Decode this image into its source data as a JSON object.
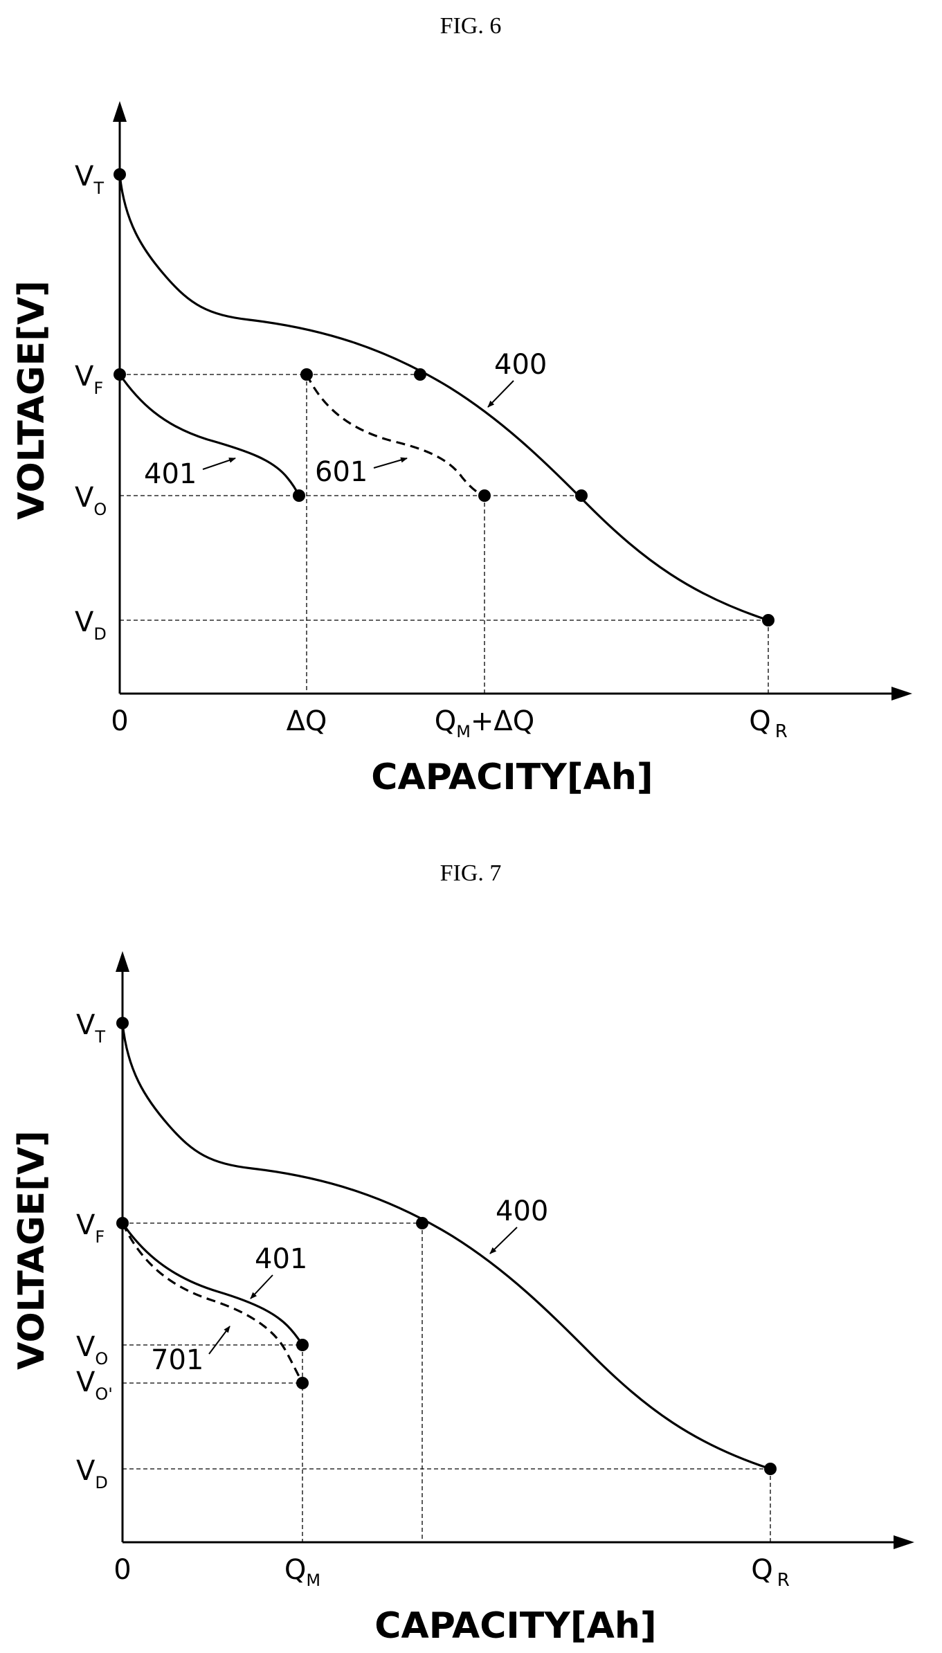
{
  "figures": [
    {
      "id": "fig6",
      "caption": "FIG. 6",
      "y_axis_label": "VOLTAGE[V]",
      "x_axis_label": "CAPACITY[Ah]",
      "y_ticks": [
        {
          "key": "VT",
          "main": "V",
          "sub": "T"
        },
        {
          "key": "VF",
          "main": "V",
          "sub": "F"
        },
        {
          "key": "VO",
          "main": "V",
          "sub": "O"
        },
        {
          "key": "VD",
          "main": "V",
          "sub": "D"
        }
      ],
      "x_ticks": [
        {
          "key": "zero",
          "main": "0",
          "sub": ""
        },
        {
          "key": "dQ",
          "main": "ΔQ",
          "sub": ""
        },
        {
          "key": "QMdQ",
          "main": "Q",
          "sub": "M",
          "tail": "+ΔQ"
        },
        {
          "key": "QR",
          "main": "Q",
          "sub": "R"
        }
      ],
      "curve_labels": [
        {
          "key": "c400",
          "text": "400"
        },
        {
          "key": "c401",
          "text": "401"
        },
        {
          "key": "c601",
          "text": "601"
        }
      ]
    },
    {
      "id": "fig7",
      "caption": "FIG. 7",
      "y_axis_label": "VOLTAGE[V]",
      "x_axis_label": "CAPACITY[Ah]",
      "y_ticks": [
        {
          "key": "VT",
          "main": "V",
          "sub": "T"
        },
        {
          "key": "VF",
          "main": "V",
          "sub": "F"
        },
        {
          "key": "VO",
          "main": "V",
          "sub": "O"
        },
        {
          "key": "VOp",
          "main": "V",
          "sub": "O'"
        },
        {
          "key": "VD",
          "main": "V",
          "sub": "D"
        }
      ],
      "x_ticks": [
        {
          "key": "zero",
          "main": "0",
          "sub": ""
        },
        {
          "key": "QM",
          "main": "Q",
          "sub": "M"
        },
        {
          "key": "QR",
          "main": "Q",
          "sub": "R"
        }
      ],
      "curve_labels": [
        {
          "key": "c400",
          "text": "400"
        },
        {
          "key": "c401",
          "text": "401"
        },
        {
          "key": "c701",
          "text": "701"
        }
      ]
    }
  ]
}
